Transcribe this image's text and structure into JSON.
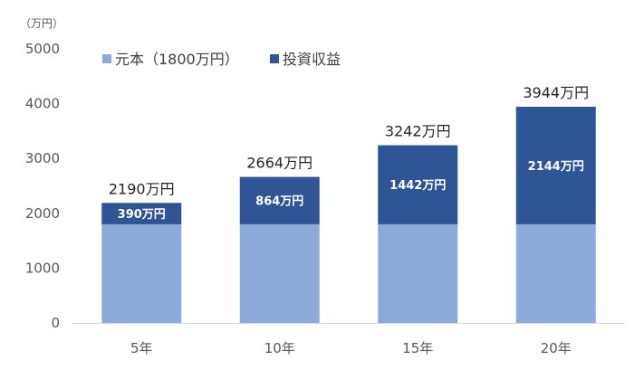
{
  "chart_data": {
    "type": "bar",
    "stacked": true,
    "unit_label": "（万円）",
    "categories": [
      "5年",
      "10年",
      "15年",
      "20年"
    ],
    "series": [
      {
        "name": "元本（1800万円）",
        "values": [
          1800,
          1800,
          1800,
          1800
        ],
        "color": "#8eaadb"
      },
      {
        "name": "投資収益",
        "values": [
          390,
          864,
          1442,
          2144
        ],
        "color": "#2f5597"
      }
    ],
    "segment_labels": [
      "390万円",
      "864万円",
      "1442万円",
      "2144万円"
    ],
    "totals": [
      2190,
      2664,
      3242,
      3944
    ],
    "total_labels": [
      "2190万円",
      "2664万円",
      "3242万円",
      "3944万円"
    ],
    "yticks": [
      "0",
      "1000",
      "2000",
      "3000",
      "4000",
      "5000"
    ],
    "ytick_values": [
      0,
      1000,
      2000,
      3000,
      4000,
      5000
    ],
    "ylim": [
      0,
      5000
    ],
    "grid": false,
    "legend_position": "top-left"
  }
}
